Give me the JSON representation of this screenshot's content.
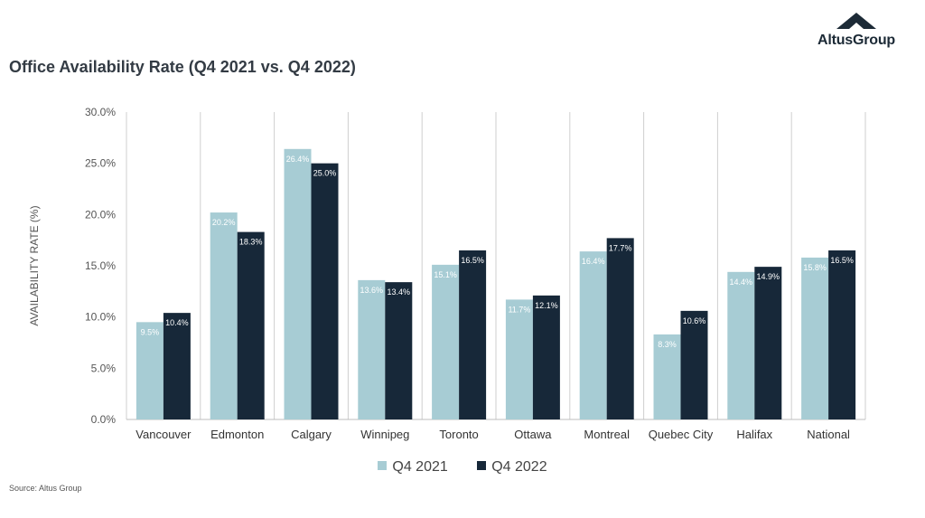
{
  "title": "Office Availability Rate (Q4 2021 vs. Q4 2022)",
  "source": "Source: Altus Group",
  "logo": {
    "text": "AltusGroup",
    "icon": "mountain-peak-icon"
  },
  "colors": {
    "q4_2021": "#a7ccd4",
    "q4_2022": "#172839",
    "grid": "#cfcfcf",
    "axis_text": "#555555"
  },
  "chart_data": {
    "type": "bar",
    "ylabel": "AVAILABILITY RATE (%)",
    "xlabel": "",
    "ylim": [
      0,
      30
    ],
    "yticks": [
      "0.0%",
      "5.0%",
      "10.0%",
      "15.0%",
      "20.0%",
      "25.0%",
      "30.0%"
    ],
    "grid": "vertical separators between categories",
    "legend_position": "bottom",
    "categories": [
      "Vancouver",
      "Edmonton",
      "Calgary",
      "Winnipeg",
      "Toronto",
      "Ottawa",
      "Montreal",
      "Quebec City",
      "Halifax",
      "National"
    ],
    "series": [
      {
        "name": "Q4 2021",
        "values": [
          9.5,
          20.2,
          26.4,
          13.6,
          15.1,
          11.7,
          16.4,
          8.3,
          14.4,
          15.8
        ],
        "labels": [
          "9.5%",
          "20.2%",
          "26.4%",
          "13.6%",
          "15.1%",
          "11.7%",
          "16.4%",
          "8.3%",
          "14.4%",
          "15.8%"
        ]
      },
      {
        "name": "Q4 2022",
        "values": [
          10.4,
          18.3,
          25.0,
          13.4,
          16.5,
          12.1,
          17.7,
          10.6,
          14.9,
          16.5
        ],
        "labels": [
          "10.4%",
          "18.3%",
          "25.0%",
          "13.4%",
          "16.5%",
          "12.1%",
          "17.7%",
          "10.6%",
          "14.9%",
          "16.5%"
        ]
      }
    ]
  }
}
